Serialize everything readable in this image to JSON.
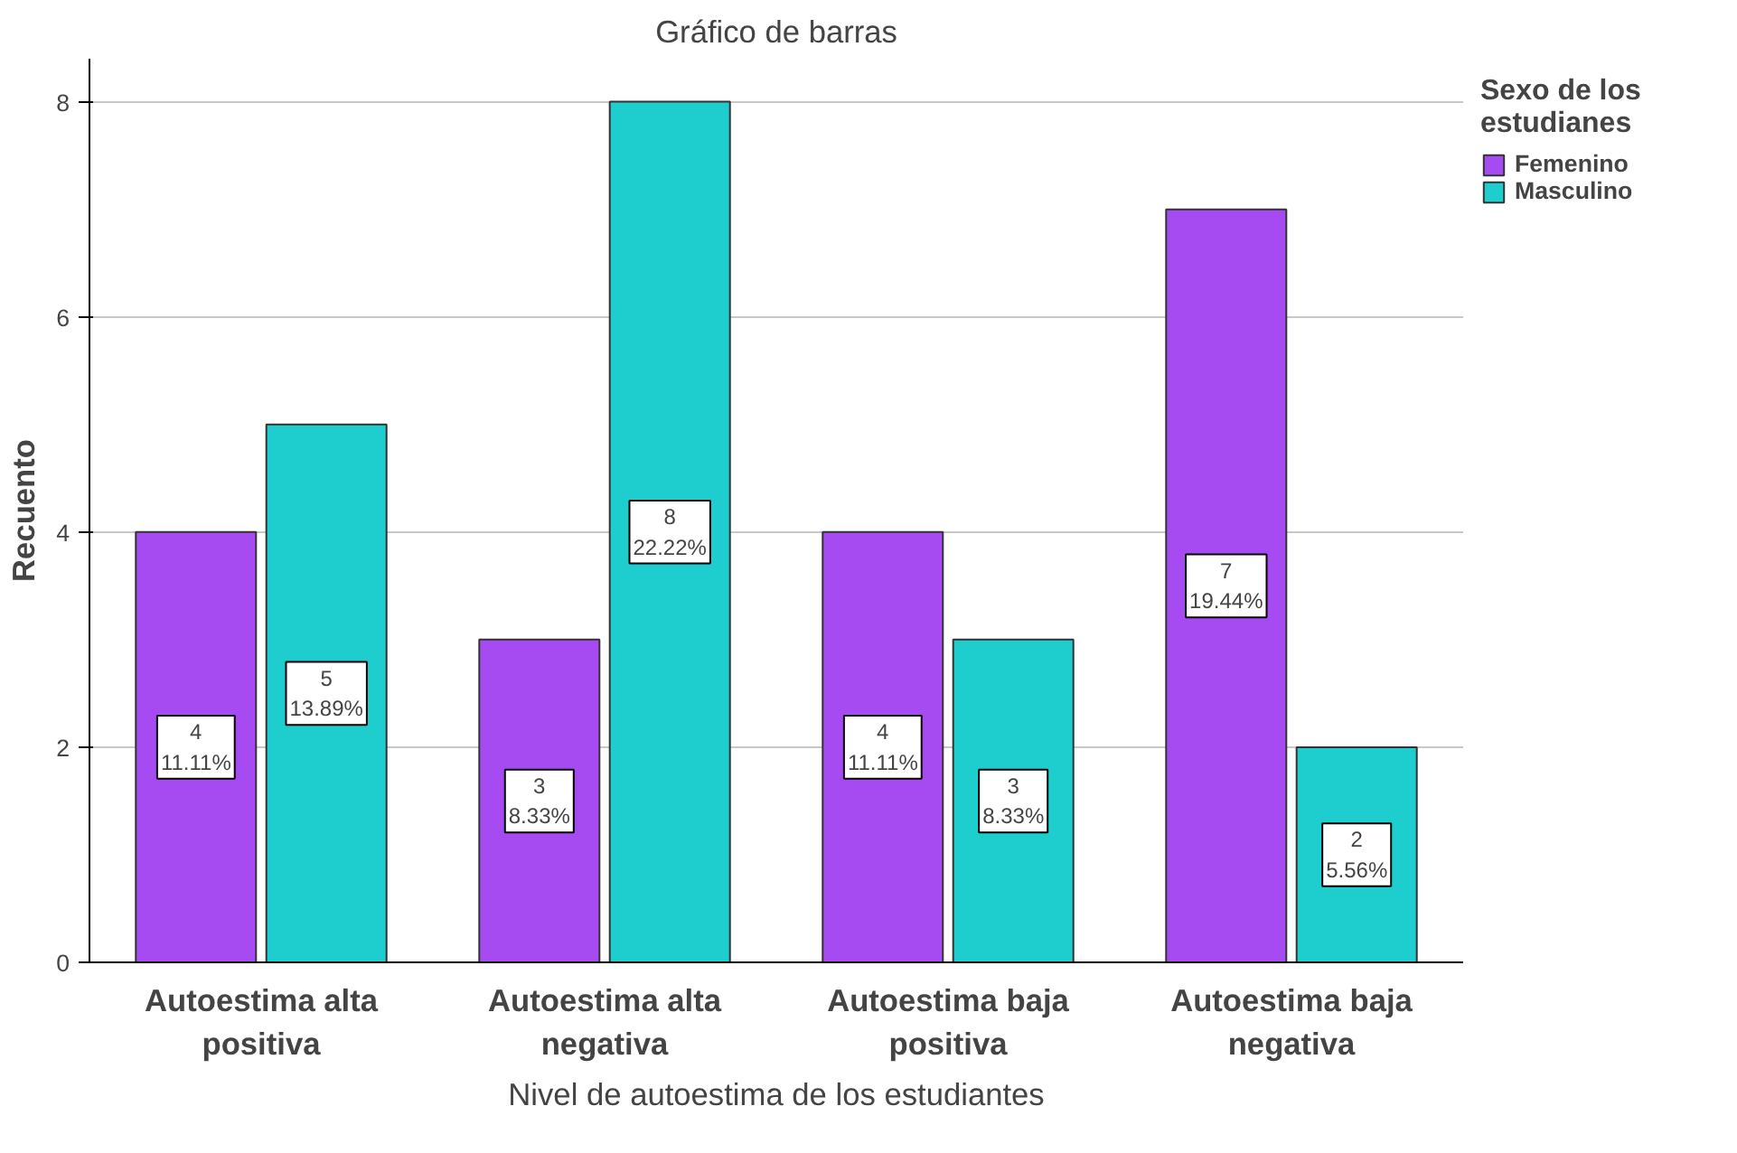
{
  "chart_data": {
    "type": "bar",
    "title": "Gráfico de barras",
    "xlabel": "Nivel de autoestima de los estudiantes",
    "ylabel": "Recuento",
    "legend_title": "Sexo de los estudianes",
    "categories": [
      "Autoestima alta positiva",
      "Autoestima alta negativa",
      "Autoestima baja positiva",
      "Autoestima baja negativa"
    ],
    "series": [
      {
        "name": "Femenino",
        "color": "#a64af2",
        "values": [
          4,
          3,
          4,
          7
        ],
        "value_labels": [
          "4\n11.11%",
          "3\n8.33%",
          "4\n11.11%",
          "7\n19.44%"
        ]
      },
      {
        "name": "Masculino",
        "color": "#1ecece",
        "values": [
          5,
          8,
          3,
          2
        ],
        "value_labels": [
          "5\n13.89%",
          "8\n22.22%",
          "3\n8.33%",
          "2\n5.56%"
        ]
      }
    ],
    "ylim": [
      0,
      8.4
    ],
    "yticks": [
      0,
      2,
      4,
      6,
      8
    ],
    "grid": "y",
    "legend": "top right"
  }
}
